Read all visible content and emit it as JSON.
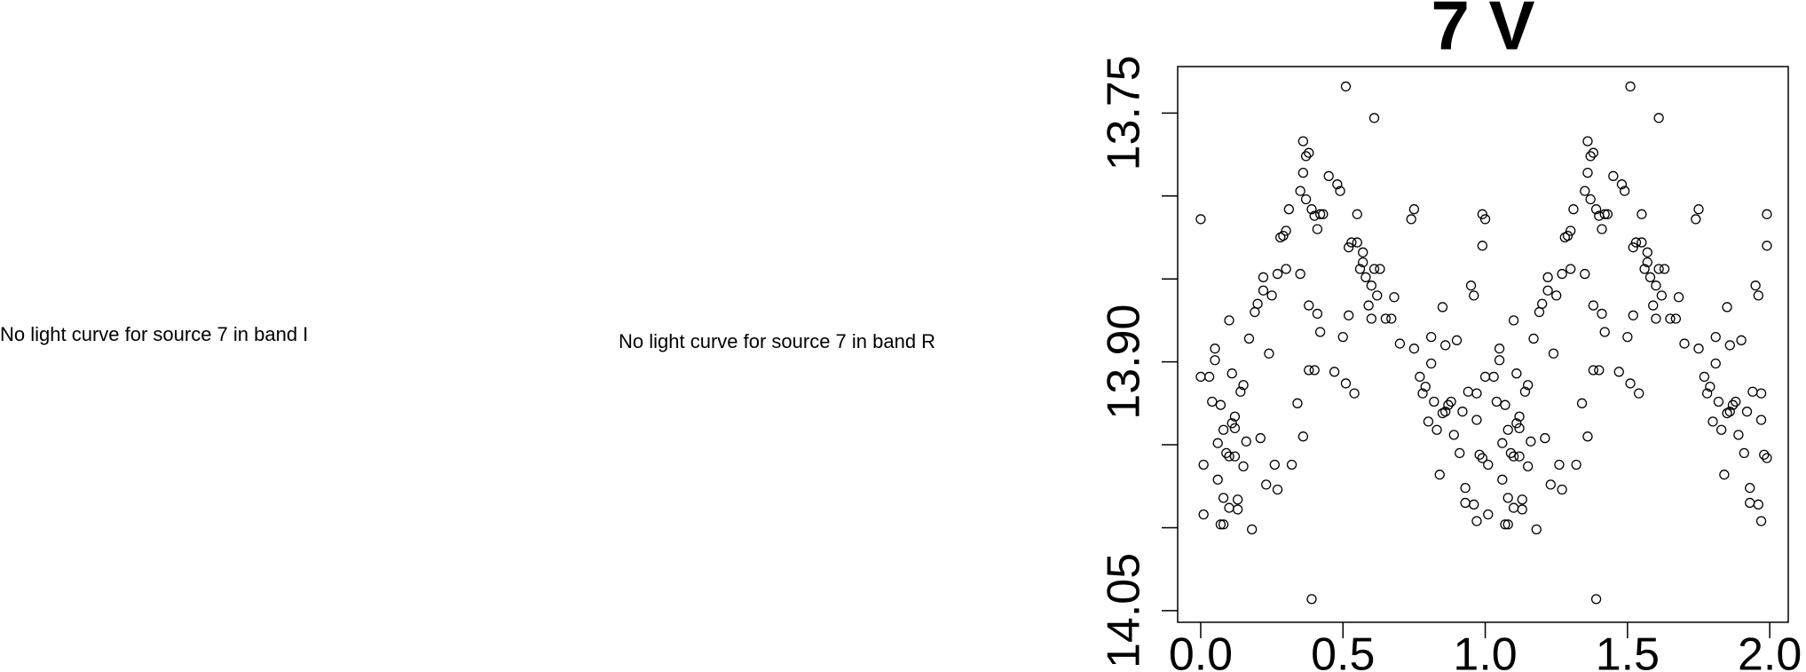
{
  "messages": [
    "No light curve for source 7 in band I",
    "No light curve for source 7 in band R"
  ],
  "chart_data": {
    "type": "scatter",
    "title": "7 V",
    "color": "#000000",
    "marker": "open-circle",
    "y_inverted": true,
    "xlim": [
      -0.081,
      2.065
    ],
    "ylim": [
      13.722,
      14.057
    ],
    "xticks": [
      {
        "value": 0,
        "label": "0.0"
      },
      0.5,
      {
        "value": 1,
        "label": "1.0"
      },
      1.5,
      {
        "value": 2,
        "label": "2.0"
      }
    ],
    "yticks": [
      13.75,
      {
        "value": 13.9,
        "label": "13.90"
      },
      14.05
    ],
    "yticks_unlabeled": [
      13.8,
      13.85,
      13.95,
      14.0
    ],
    "x": [
      0,
      0,
      0.01,
      0.01,
      0.03,
      0.04,
      0.05,
      0.05,
      0.06,
      0.06,
      0.07,
      0.07,
      0.08,
      0.08,
      0.08,
      0.09,
      0.1,
      0.1,
      0.1,
      0.11,
      0.11,
      0.12,
      0.12,
      0.12,
      0.13,
      0.13,
      0.14,
      0.15,
      0.15,
      0.16,
      0.17,
      0.18,
      0.19,
      0.2,
      0.21,
      0.22,
      0.22,
      0.23,
      0.24,
      0.25,
      0.26,
      0.27,
      0.27,
      0.28,
      0.29,
      0.3,
      0.3,
      0.31,
      0.32,
      0.34,
      0.35,
      0.35,
      0.36,
      0.36,
      0.36,
      0.37,
      0.37,
      0.38,
      0.38,
      0.38,
      0.39,
      0.39,
      0.4,
      0.4,
      0.41,
      0.41,
      0.42,
      0.42,
      0.43,
      0.45,
      0.47,
      0.48,
      0.49,
      0.5,
      0.51,
      0.51,
      0.52,
      0.52,
      0.53,
      0.54,
      0.55,
      0.55,
      0.56,
      0.57,
      0.57,
      0.58,
      0.59,
      0.6,
      0.6,
      0.61,
      0.61,
      0.62,
      0.63,
      0.65,
      0.67,
      0.68,
      0.7,
      0.74,
      0.75,
      0.75,
      0.77,
      0.78,
      0.79,
      0.8,
      0.81,
      0.81,
      0.82,
      0.83,
      0.84,
      0.85,
      0.85,
      0.86,
      0.86,
      0.87,
      0.88,
      0.89,
      0.9,
      0.91,
      0.92,
      0.93,
      0.93,
      0.94,
      0.95,
      0.96,
      0.96,
      0.97,
      0.97,
      0.97,
      0.98,
      0.99,
      0.99,
      0.99,
      1,
      1,
      1.01,
      1.01,
      1.03,
      1.04,
      1.05,
      1.05,
      1.06,
      1.06,
      1.07,
      1.07,
      1.08,
      1.08,
      1.08,
      1.09,
      1.1,
      1.1,
      1.1,
      1.11,
      1.11,
      1.12,
      1.12,
      1.12,
      1.13,
      1.13,
      1.14,
      1.15,
      1.15,
      1.16,
      1.17,
      1.18,
      1.19,
      1.2,
      1.21,
      1.22,
      1.22,
      1.23,
      1.24,
      1.25,
      1.26,
      1.27,
      1.27,
      1.28,
      1.29,
      1.3,
      1.3,
      1.31,
      1.32,
      1.34,
      1.35,
      1.35,
      1.36,
      1.36,
      1.36,
      1.37,
      1.37,
      1.38,
      1.38,
      1.38,
      1.39,
      1.39,
      1.4,
      1.4,
      1.41,
      1.41,
      1.42,
      1.42,
      1.43,
      1.45,
      1.47,
      1.48,
      1.49,
      1.5,
      1.51,
      1.51,
      1.52,
      1.52,
      1.53,
      1.54,
      1.55,
      1.55,
      1.56,
      1.57,
      1.57,
      1.58,
      1.59,
      1.6,
      1.6,
      1.61,
      1.61,
      1.62,
      1.63,
      1.65,
      1.67,
      1.68,
      1.7,
      1.74,
      1.75,
      1.75,
      1.77,
      1.78,
      1.79,
      1.8,
      1.81,
      1.81,
      1.82,
      1.83,
      1.84,
      1.85,
      1.85,
      1.86,
      1.86,
      1.87,
      1.88,
      1.89,
      1.9,
      1.91,
      1.92,
      1.93,
      1.93,
      1.94,
      1.95,
      1.96,
      1.96,
      1.97,
      1.97,
      1.97,
      1.98,
      1.99,
      1.99,
      1.99
    ],
    "values": [
      13.814,
      13.909,
      13.962,
      13.992,
      13.909,
      13.924,
      13.892,
      13.899,
      13.949,
      13.971,
      13.998,
      13.926,
      13.941,
      13.998,
      13.982,
      13.955,
      13.957,
      13.988,
      13.875,
      13.937,
      13.907,
      13.933,
      13.94,
      13.957,
      13.983,
      13.989,
      13.918,
      13.914,
      13.963,
      13.948,
      13.886,
      14.001,
      13.87,
      13.865,
      13.946,
      13.857,
      13.849,
      13.974,
      13.895,
      13.86,
      13.962,
      13.847,
      13.977,
      13.825,
      13.824,
      13.844,
      13.821,
      13.808,
      13.962,
      13.925,
      13.847,
      13.797,
      13.786,
      13.767,
      13.945,
      13.776,
      13.802,
      13.774,
      13.866,
      13.905,
      14.043,
      13.808,
      13.905,
      13.812,
      13.82,
      13.871,
      13.882,
      13.811,
      13.811,
      13.788,
      13.906,
      13.793,
      13.797,
      13.885,
      13.913,
      13.734,
      13.872,
      13.831,
      13.828,
      13.919,
      13.811,
      13.828,
      13.844,
      13.84,
      13.834,
      13.849,
      13.866,
      13.854,
      13.874,
      13.844,
      13.753,
      13.86,
      13.844,
      13.874,
      13.874,
      13.861,
      13.889,
      13.814,
      13.808,
      13.892,
      13.909,
      13.919,
      13.915,
      13.936,
      13.901,
      13.885,
      13.924,
      13.941,
      13.968,
      13.867,
      13.931,
      13.89,
      13.93,
      13.926,
      13.924,
      13.944,
      13.887,
      13.955,
      13.93,
      13.976,
      13.985,
      13.918,
      13.854,
      13.86,
      13.986,
      13.935,
      13.919,
      13.996,
      13.956,
      13.958,
      13.811,
      13.83,
      13.814,
      13.909,
      13.962,
      13.992,
      13.909,
      13.924,
      13.892,
      13.899,
      13.949,
      13.971,
      13.998,
      13.926,
      13.941,
      13.998,
      13.982,
      13.955,
      13.957,
      13.988,
      13.875,
      13.937,
      13.907,
      13.933,
      13.94,
      13.957,
      13.983,
      13.989,
      13.918,
      13.914,
      13.963,
      13.948,
      13.886,
      14.001,
      13.87,
      13.865,
      13.946,
      13.857,
      13.849,
      13.974,
      13.895,
      13.86,
      13.962,
      13.847,
      13.977,
      13.825,
      13.824,
      13.844,
      13.821,
      13.808,
      13.962,
      13.925,
      13.847,
      13.797,
      13.786,
      13.767,
      13.945,
      13.776,
      13.802,
      13.774,
      13.866,
      13.905,
      14.043,
      13.808,
      13.905,
      13.812,
      13.82,
      13.871,
      13.882,
      13.811,
      13.811,
      13.788,
      13.906,
      13.793,
      13.797,
      13.885,
      13.913,
      13.734,
      13.872,
      13.831,
      13.828,
      13.919,
      13.811,
      13.828,
      13.844,
      13.84,
      13.834,
      13.849,
      13.866,
      13.854,
      13.874,
      13.844,
      13.753,
      13.86,
      13.844,
      13.874,
      13.874,
      13.861,
      13.889,
      13.814,
      13.808,
      13.892,
      13.909,
      13.919,
      13.915,
      13.936,
      13.901,
      13.885,
      13.924,
      13.941,
      13.968,
      13.867,
      13.931,
      13.89,
      13.93,
      13.926,
      13.924,
      13.944,
      13.887,
      13.955,
      13.93,
      13.976,
      13.985,
      13.918,
      13.854,
      13.86,
      13.986,
      13.935,
      13.919,
      13.996,
      13.956,
      13.958,
      13.811,
      13.83
    ]
  }
}
